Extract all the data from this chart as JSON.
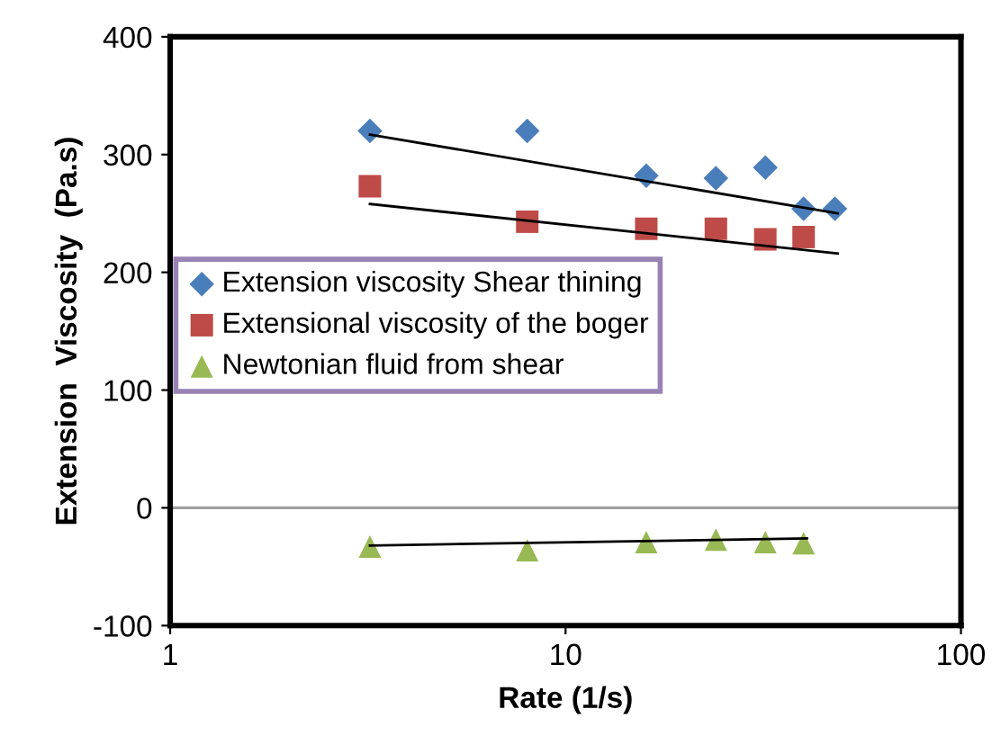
{
  "chart_data": {
    "type": "scatter",
    "xlabel": "Rate (1/s)",
    "ylabel": "Extension  Viscosity  (Pa.s)",
    "log": "x",
    "xlim": [
      1,
      100
    ],
    "xticks": [
      1,
      10,
      100
    ],
    "ylim": [
      -100,
      400
    ],
    "yticks": [
      -100,
      0,
      100,
      200,
      300,
      400
    ],
    "grid": false,
    "legend": "left",
    "ref_lines": [
      {
        "axis": "y",
        "value": 0,
        "color": "#a0a0a0"
      }
    ],
    "series": [
      {
        "name": "Extension viscosity Shear thining",
        "color": "#4a7ebb",
        "marker": "diamond",
        "x": [
          3.2,
          8,
          16,
          24,
          32,
          40,
          48
        ],
        "values": [
          320,
          320,
          282,
          280,
          289,
          254,
          254
        ]
      },
      {
        "name": "Extensional viscosity of the boger",
        "color": "#be4b48",
        "marker": "square",
        "x": [
          3.2,
          8,
          16,
          24,
          32,
          40
        ],
        "values": [
          273,
          243,
          237,
          237,
          228,
          230
        ]
      },
      {
        "name": "Newtonian fluid from shear",
        "color": "#98b954",
        "marker": "triangle",
        "x": [
          3.2,
          8,
          16,
          24,
          32,
          40
        ],
        "values": [
          -33,
          -36,
          -29,
          -27,
          -29,
          -30
        ]
      },
      {
        "type": "line",
        "color": "#000000",
        "marker": "none",
        "x": [
          3.2,
          48.8
        ],
        "values": [
          317,
          250
        ]
      },
      {
        "type": "line",
        "color": "#000000",
        "marker": "none",
        "x": [
          3.2,
          48.8
        ],
        "values": [
          258,
          216
        ]
      },
      {
        "type": "line",
        "color": "#000000",
        "marker": "none",
        "x": [
          3.2,
          40.8
        ],
        "values": [
          -32,
          -26
        ]
      }
    ]
  }
}
